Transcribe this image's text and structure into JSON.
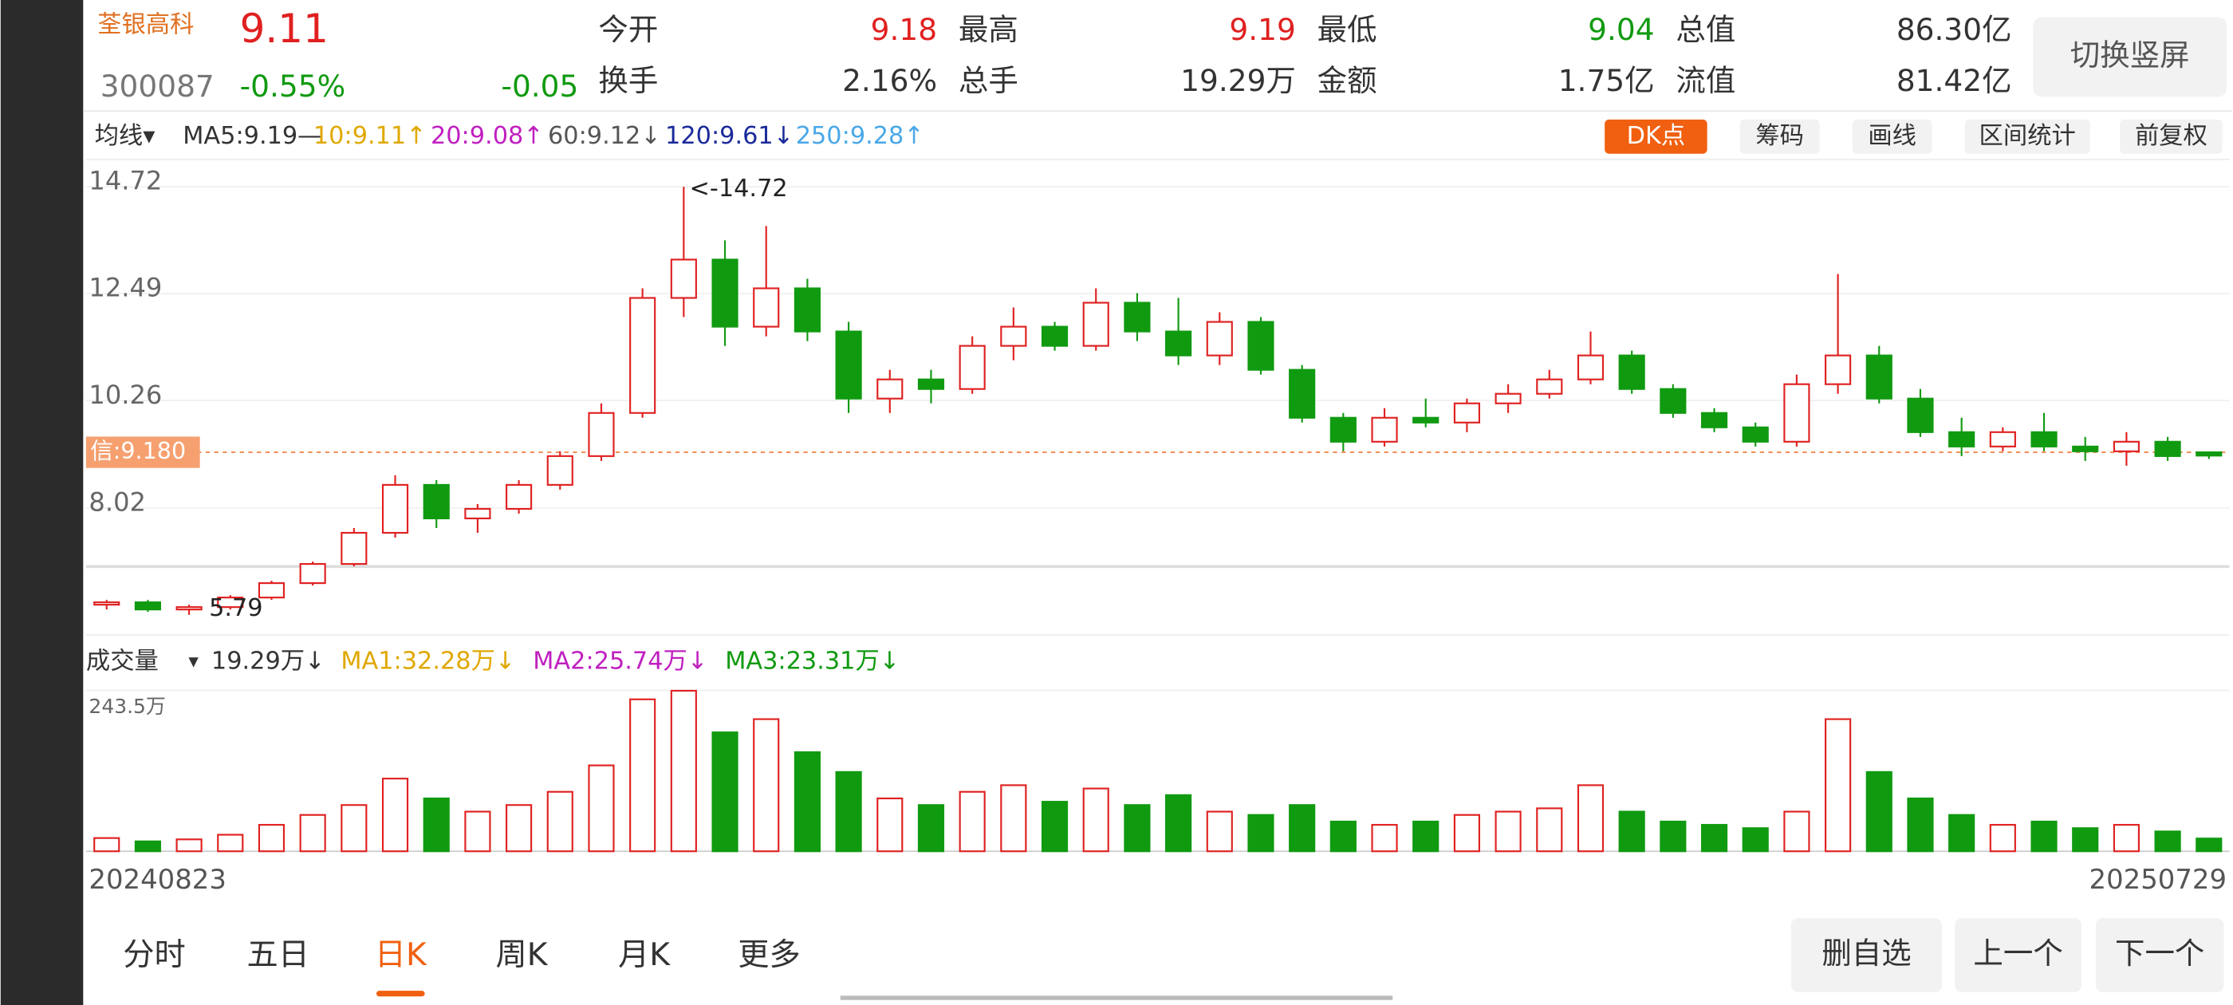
{
  "header": {
    "name": "荃银高科",
    "price": "9.11",
    "code": "300087",
    "change_pct": "-0.55%",
    "change": "-0.05",
    "fields": [
      {
        "label": "今开",
        "value": "9.18"
      },
      {
        "label": "最高",
        "value": "9.19"
      },
      {
        "label": "最低",
        "value": "9.04"
      },
      {
        "label": "总值",
        "value": "86.30亿"
      },
      {
        "label": "换手",
        "value": "2.16%"
      },
      {
        "label": "总手",
        "value": "19.29万"
      },
      {
        "label": "金额",
        "value": "1.75亿"
      },
      {
        "label": "流值",
        "value": "81.42亿"
      }
    ],
    "rotate_button": "切换竖屏"
  },
  "indicators": {
    "selector": "均线▾",
    "items": [
      "MA5:9.19—",
      "10:9.11↑",
      "20:9.08↑",
      "60:9.12↓",
      "120:9.61↓",
      "250:9.28↑"
    ]
  },
  "toolbar": [
    "DK点",
    "筹码",
    "画线",
    "区间统计",
    "前复权"
  ],
  "volume_indicators": {
    "selector": "成交量",
    "items": [
      "19.29万↓",
      "MA1:32.28万↓",
      "MA2:25.74万↓",
      "MA3:23.31万↓"
    ]
  },
  "chart_data": {
    "type": "candlestick",
    "up_color": "#e02020",
    "down_color": "#109a10",
    "ylim": [
      5.4,
      15.2
    ],
    "yticks": [
      14.72,
      12.49,
      10.26,
      8.02
    ],
    "high_label": "<-14.72",
    "low_label": "5.79",
    "ref_line": {
      "value": 9.18,
      "label": "信:9.180"
    },
    "x_labels": [
      "20240823",
      "20250729"
    ],
    "candles": [
      [
        6.0,
        6.1,
        5.9,
        6.05
      ],
      [
        6.05,
        6.1,
        5.85,
        5.9
      ],
      [
        5.9,
        6.0,
        5.79,
        5.95
      ],
      [
        5.95,
        6.2,
        5.9,
        6.15
      ],
      [
        6.15,
        6.5,
        6.1,
        6.45
      ],
      [
        6.45,
        6.9,
        6.4,
        6.85
      ],
      [
        6.85,
        7.6,
        6.8,
        7.5
      ],
      [
        7.5,
        8.7,
        7.4,
        8.5
      ],
      [
        8.5,
        8.6,
        7.6,
        7.8
      ],
      [
        7.8,
        8.1,
        7.5,
        8.0
      ],
      [
        8.0,
        8.6,
        7.9,
        8.5
      ],
      [
        8.5,
        9.2,
        8.4,
        9.1
      ],
      [
        9.1,
        10.2,
        9.0,
        10.0
      ],
      [
        10.0,
        12.6,
        9.9,
        12.4
      ],
      [
        12.4,
        14.72,
        12.0,
        13.2
      ],
      [
        13.2,
        13.6,
        11.4,
        11.8
      ],
      [
        11.8,
        13.9,
        11.6,
        12.6
      ],
      [
        12.6,
        12.8,
        11.5,
        11.7
      ],
      [
        11.7,
        11.9,
        10.0,
        10.3
      ],
      [
        10.3,
        10.9,
        10.0,
        10.7
      ],
      [
        10.7,
        10.9,
        10.2,
        10.5
      ],
      [
        10.5,
        11.6,
        10.4,
        11.4
      ],
      [
        11.4,
        12.2,
        11.1,
        11.8
      ],
      [
        11.8,
        11.9,
        11.3,
        11.4
      ],
      [
        11.4,
        12.6,
        11.3,
        12.3
      ],
      [
        12.3,
        12.5,
        11.5,
        11.7
      ],
      [
        11.7,
        12.4,
        11.0,
        11.2
      ],
      [
        11.2,
        12.1,
        11.0,
        11.9
      ],
      [
        11.9,
        12.0,
        10.8,
        10.9
      ],
      [
        10.9,
        11.0,
        9.8,
        9.9
      ],
      [
        9.9,
        10.0,
        9.2,
        9.4
      ],
      [
        9.4,
        10.1,
        9.3,
        9.9
      ],
      [
        9.9,
        10.3,
        9.7,
        9.8
      ],
      [
        9.8,
        10.3,
        9.6,
        10.2
      ],
      [
        10.2,
        10.6,
        10.0,
        10.4
      ],
      [
        10.4,
        10.9,
        10.3,
        10.7
      ],
      [
        10.7,
        11.7,
        10.6,
        11.2
      ],
      [
        11.2,
        11.3,
        10.4,
        10.5
      ],
      [
        10.5,
        10.6,
        9.9,
        10.0
      ],
      [
        10.0,
        10.1,
        9.6,
        9.7
      ],
      [
        9.7,
        9.8,
        9.3,
        9.4
      ],
      [
        9.4,
        10.8,
        9.3,
        10.6
      ],
      [
        10.6,
        12.9,
        10.4,
        11.2
      ],
      [
        11.2,
        11.4,
        10.2,
        10.3
      ],
      [
        10.3,
        10.5,
        9.5,
        9.6
      ],
      [
        9.6,
        9.9,
        9.1,
        9.3
      ],
      [
        9.3,
        9.7,
        9.2,
        9.6
      ],
      [
        9.6,
        10.0,
        9.2,
        9.3
      ],
      [
        9.3,
        9.5,
        9.0,
        9.2
      ],
      [
        9.2,
        9.6,
        8.9,
        9.4
      ],
      [
        9.4,
        9.5,
        9.0,
        9.1
      ],
      [
        9.18,
        9.19,
        9.04,
        9.11
      ]
    ],
    "volume": {
      "ylim": [
        0,
        243.5
      ],
      "yticks": [
        {
          "value": 243.5,
          "label": "243.5万"
        }
      ],
      "values": [
        20,
        15,
        18,
        25,
        40,
        55,
        70,
        110,
        80,
        60,
        70,
        90,
        130,
        230,
        243,
        180,
        200,
        150,
        120,
        80,
        70,
        90,
        100,
        75,
        95,
        70,
        85,
        60,
        55,
        70,
        45,
        40,
        45,
        55,
        60,
        65,
        100,
        60,
        45,
        40,
        35,
        60,
        200,
        120,
        80,
        55,
        40,
        45,
        35,
        40,
        30,
        19.29
      ]
    }
  },
  "tabs": [
    "分时",
    "五日",
    "日K",
    "周K",
    "月K",
    "更多"
  ],
  "actions": [
    "删自选",
    "上一个",
    "下一个"
  ]
}
